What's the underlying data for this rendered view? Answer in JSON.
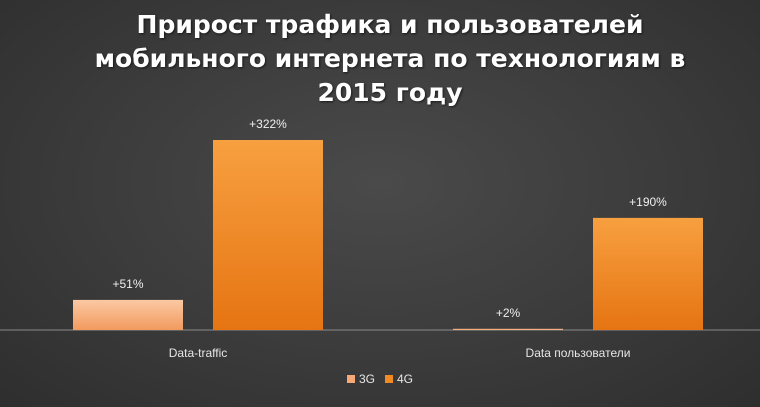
{
  "chart_data": {
    "type": "bar",
    "title": "Прирост трафика и пользователей мобильного интернета по технологиям в 2015 году",
    "categories": [
      "Data-traffic",
      "Data пользователи"
    ],
    "series": [
      {
        "name": "3G",
        "values": [
          51,
          2
        ],
        "labels": [
          "+51%",
          "+2%"
        ],
        "color": "#f6a877"
      },
      {
        "name": "4G",
        "values": [
          322,
          190
        ],
        "labels": [
          "+322%",
          "+190%"
        ],
        "color": "#f08a24"
      }
    ],
    "ylim": [
      0,
      322
    ],
    "grid": false,
    "legend_position": "bottom"
  }
}
